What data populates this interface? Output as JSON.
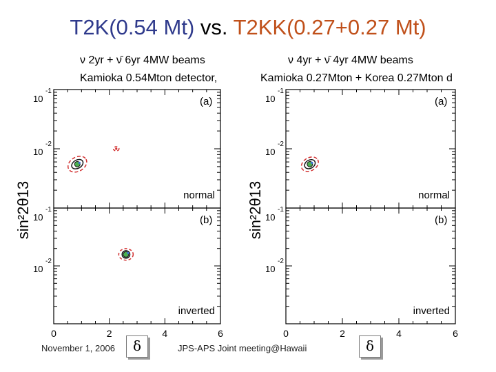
{
  "slide": {
    "title_part1": "T2K(0.54 Mt)",
    "title_vs": " vs. ",
    "title_part2": "T2KK(0.27+0.27 Mt)",
    "title_color1": "#2f3a8c",
    "title_color_vs": "#000000",
    "title_color2": "#c0501a",
    "footer_date": "November 1, 2006",
    "footer_event": "JPS-APS Joint meeting@Hawaii",
    "delta_symbol": "δ"
  },
  "chart_data": [
    {
      "type": "scatter",
      "id": "left",
      "header_line1": "ν 2yr + ν̄ 6yr 4MW beams",
      "header_line2": "Kamioka 0.54Mton detector,",
      "ylabel": "sin²2θ13",
      "xlabel": "δ",
      "xlim": [
        0,
        6
      ],
      "ylim_log10": [
        -3,
        -1
      ],
      "xticks": [
        "0",
        "2",
        "4",
        "6"
      ],
      "panels": [
        {
          "tag": "(a)",
          "hierarchy": "normal",
          "y_top_label": "10⁻¹",
          "y_mid_label": "10⁻²",
          "markers": [
            {
              "x": 0.85,
              "y": 0.0055,
              "kind": "point"
            },
            {
              "x": 2.25,
              "y": 0.01,
              "kind": "fake"
            }
          ],
          "contours": [
            {
              "x": 0.85,
              "y": 0.0055,
              "rx": 0.22,
              "rlog": 0.07,
              "rot": -30,
              "stroke": "#1a1a1a",
              "dash": "none"
            },
            {
              "x": 0.85,
              "y": 0.0055,
              "rx": 0.36,
              "rlog": 0.12,
              "rot": -30,
              "stroke": "#d23030",
              "dash": "5,3"
            },
            {
              "x": 2.25,
              "y": 0.01,
              "rx": 0.1,
              "rlog": 0.035,
              "rot": 0,
              "stroke": "#d23030",
              "dash": "4,3"
            }
          ]
        },
        {
          "tag": "(b)",
          "hierarchy": "inverted",
          "y_top_label": "10⁻¹",
          "y_mid_label": "10⁻²",
          "markers": [
            {
              "x": 2.6,
              "y": 0.0158,
              "kind": "point"
            }
          ],
          "contours": [
            {
              "x": 2.6,
              "y": 0.0158,
              "rx": 0.14,
              "rlog": 0.065,
              "rot": 0,
              "stroke": "#1a1a1a",
              "dash": "none"
            },
            {
              "x": 2.6,
              "y": 0.0158,
              "rx": 0.26,
              "rlog": 0.1,
              "rot": 0,
              "stroke": "#d23030",
              "dash": "4,3"
            }
          ]
        }
      ]
    },
    {
      "type": "scatter",
      "id": "right",
      "header_line1": "ν 4yr + ν̄ 4yr 4MW beams",
      "header_line2": "Kamioka 0.27Mton + Korea 0.27Mton d",
      "ylabel": "sin²2θ13",
      "xlabel": "δ",
      "xlim": [
        0,
        6
      ],
      "ylim_log10": [
        -3,
        -1
      ],
      "xticks": [
        "0",
        "2",
        "4",
        "6"
      ],
      "panels": [
        {
          "tag": "(a)",
          "hierarchy": "normal",
          "y_top_label": "10⁻¹",
          "y_mid_label": "10⁻²",
          "markers": [
            {
              "x": 0.85,
              "y": 0.0055,
              "kind": "point"
            }
          ],
          "contours": [
            {
              "x": 0.85,
              "y": 0.0055,
              "rx": 0.2,
              "rlog": 0.07,
              "rot": -30,
              "stroke": "#1a1a1a",
              "dash": "none"
            },
            {
              "x": 0.85,
              "y": 0.0055,
              "rx": 0.32,
              "rlog": 0.11,
              "rot": -30,
              "stroke": "#d23030",
              "dash": "5,3"
            }
          ]
        },
        {
          "tag": "(b)",
          "hierarchy": "inverted",
          "y_top_label": "10⁻¹",
          "y_mid_label": "10⁻²",
          "markers": [],
          "contours": []
        }
      ]
    }
  ]
}
